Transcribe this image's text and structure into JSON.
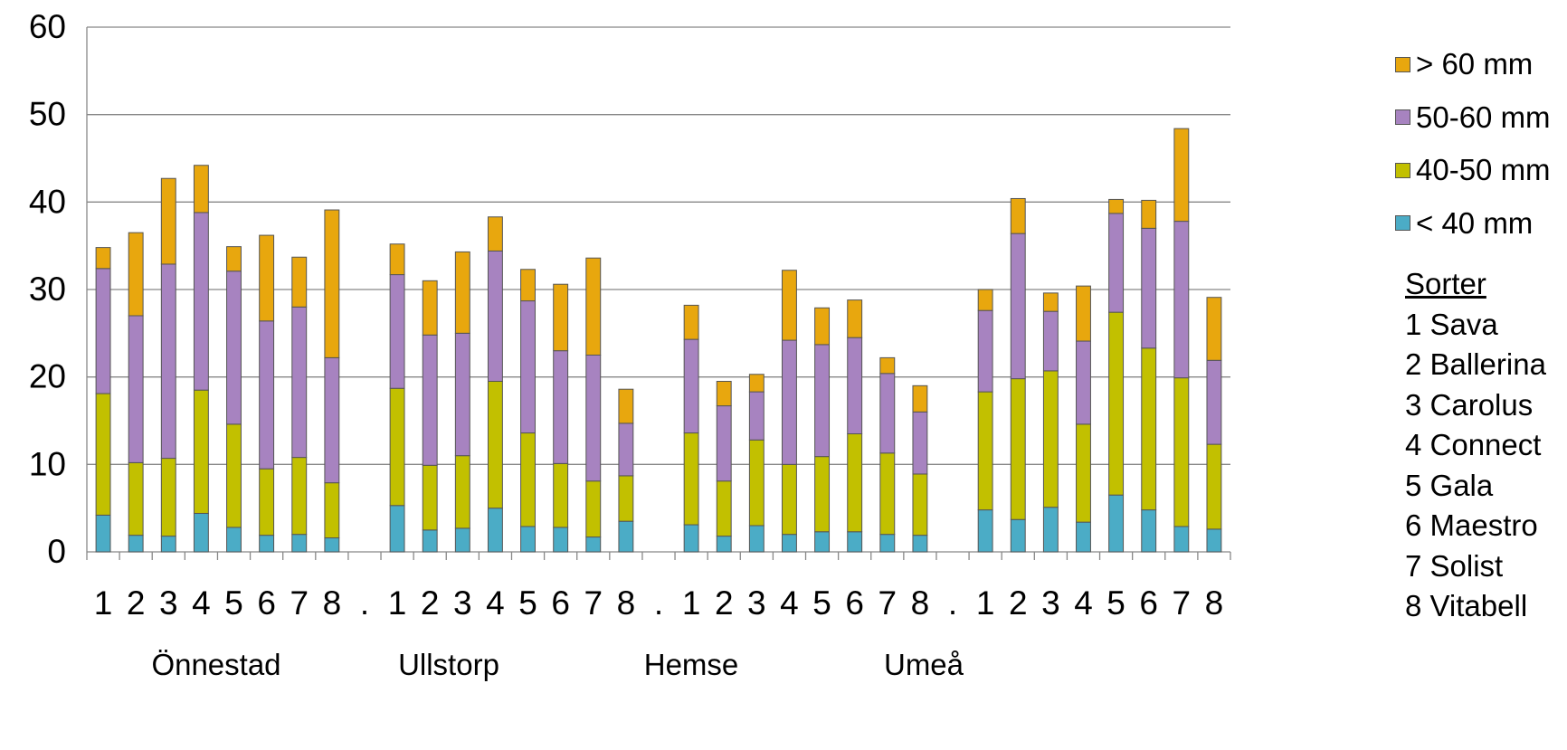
{
  "chart_data": {
    "type": "bar",
    "stacked": true,
    "ylim": [
      0,
      60
    ],
    "yticks": [
      0,
      10,
      20,
      30,
      40,
      50,
      60
    ],
    "grid": true,
    "legend_position": "right",
    "groups": [
      {
        "label": "Önnestad",
        "categories": [
          "1",
          "2",
          "3",
          "4",
          "5",
          "6",
          "7",
          "8"
        ]
      },
      {
        "label": "Ullstorp",
        "categories": [
          "1",
          "2",
          "3",
          "4",
          "5",
          "6",
          "7",
          "8"
        ]
      },
      {
        "label": "Hemse",
        "categories": [
          "1",
          "2",
          "3",
          "4",
          "5",
          "6",
          "7",
          "8"
        ]
      },
      {
        "label": "Umeå",
        "categories": [
          "1",
          "2",
          "3",
          "4",
          "5",
          "6",
          "7",
          "8"
        ]
      }
    ],
    "separator_label": ".",
    "series": [
      {
        "name": "< 40 mm",
        "color": "#4BACC6",
        "values": [
          [
            4.2,
            1.9,
            1.8,
            4.4,
            2.8,
            1.9,
            2.0,
            1.6
          ],
          [
            5.3,
            2.5,
            2.7,
            5.0,
            2.9,
            2.8,
            1.7,
            3.5
          ],
          [
            3.1,
            1.8,
            3.0,
            2.0,
            2.3,
            2.3,
            2.0,
            1.9
          ],
          [
            4.8,
            3.7,
            5.1,
            3.4,
            6.5,
            4.8,
            2.9,
            2.6
          ]
        ]
      },
      {
        "name": "40-50 mm",
        "color": "#C2C000",
        "values": [
          [
            13.9,
            8.3,
            8.9,
            14.1,
            11.8,
            7.6,
            8.8,
            6.3
          ],
          [
            13.4,
            7.4,
            8.3,
            14.5,
            10.7,
            7.3,
            6.4,
            5.2
          ],
          [
            10.5,
            6.3,
            9.8,
            8.0,
            8.6,
            11.2,
            9.3,
            7.0
          ],
          [
            13.5,
            16.1,
            15.6,
            11.2,
            20.9,
            18.5,
            17.0,
            9.7
          ]
        ]
      },
      {
        "name": "50-60 mm",
        "color": "#A783C0",
        "values": [
          [
            14.3,
            16.8,
            22.2,
            20.3,
            17.5,
            16.9,
            17.2,
            14.3
          ],
          [
            13.0,
            14.9,
            14.0,
            14.9,
            15.1,
            12.9,
            14.4,
            6.0
          ],
          [
            10.7,
            8.6,
            5.5,
            14.2,
            12.8,
            11.0,
            9.1,
            7.1
          ],
          [
            9.3,
            16.6,
            6.8,
            9.5,
            11.3,
            13.7,
            17.9,
            9.6
          ]
        ]
      },
      {
        "name": "> 60 mm",
        "color": "#E8A70E",
        "values": [
          [
            2.4,
            9.5,
            9.8,
            5.4,
            2.8,
            9.8,
            5.7,
            16.9
          ],
          [
            3.5,
            6.2,
            9.3,
            3.9,
            3.6,
            7.6,
            11.1,
            3.9
          ],
          [
            3.9,
            2.8,
            2.0,
            8.0,
            4.2,
            4.3,
            1.8,
            3.0
          ],
          [
            2.4,
            4.0,
            2.1,
            6.3,
            1.6,
            3.2,
            10.6,
            7.2
          ]
        ]
      }
    ]
  },
  "sorter": {
    "title": "Sorter",
    "items": [
      "1 Sava",
      "2 Ballerina",
      "3 Carolus",
      "4 Connect",
      "5 Gala",
      "6 Maestro",
      "7 Solist",
      "8 Vitabell"
    ]
  }
}
